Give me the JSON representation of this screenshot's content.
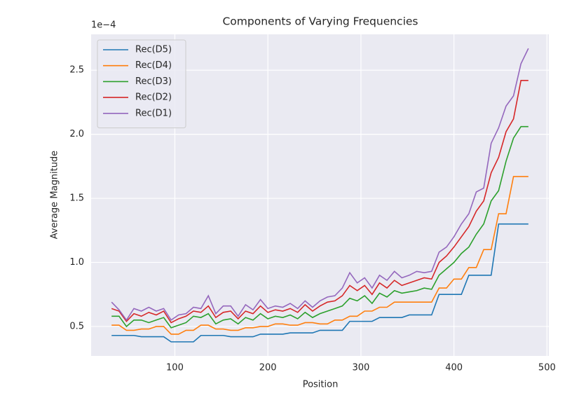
{
  "chart_data": {
    "type": "line",
    "title": "Components of Varying Frequencies",
    "xlabel": "Position",
    "ylabel": "Average Magnitude",
    "offset_text": "1e−4",
    "x": [
      32,
      40,
      48,
      56,
      64,
      72,
      80,
      88,
      96,
      104,
      112,
      120,
      128,
      136,
      144,
      152,
      160,
      168,
      176,
      184,
      192,
      200,
      208,
      216,
      224,
      232,
      240,
      248,
      256,
      264,
      272,
      280,
      288,
      296,
      304,
      312,
      320,
      328,
      336,
      344,
      352,
      360,
      368,
      376,
      384,
      392,
      400,
      408,
      416,
      424,
      432,
      440,
      448,
      456,
      464,
      472,
      480
    ],
    "series": [
      {
        "name": "Rec(D5)",
        "color": "#1f77b4",
        "values": [
          0.43,
          0.43,
          0.43,
          0.43,
          0.42,
          0.42,
          0.42,
          0.42,
          0.38,
          0.38,
          0.38,
          0.38,
          0.43,
          0.43,
          0.43,
          0.43,
          0.42,
          0.42,
          0.42,
          0.42,
          0.44,
          0.44,
          0.44,
          0.44,
          0.45,
          0.45,
          0.45,
          0.45,
          0.47,
          0.47,
          0.47,
          0.47,
          0.54,
          0.54,
          0.54,
          0.54,
          0.57,
          0.57,
          0.57,
          0.57,
          0.59,
          0.59,
          0.59,
          0.59,
          0.75,
          0.75,
          0.75,
          0.75,
          0.9,
          0.9,
          0.9,
          0.9,
          1.3,
          1.3,
          1.3,
          1.3,
          1.3
        ]
      },
      {
        "name": "Rec(D4)",
        "color": "#ff7f0e",
        "values": [
          0.51,
          0.51,
          0.47,
          0.47,
          0.48,
          0.48,
          0.5,
          0.5,
          0.44,
          0.44,
          0.47,
          0.47,
          0.51,
          0.51,
          0.48,
          0.48,
          0.47,
          0.47,
          0.49,
          0.49,
          0.5,
          0.5,
          0.52,
          0.52,
          0.51,
          0.51,
          0.53,
          0.53,
          0.52,
          0.52,
          0.55,
          0.55,
          0.58,
          0.58,
          0.62,
          0.62,
          0.65,
          0.65,
          0.69,
          0.69,
          0.69,
          0.69,
          0.69,
          0.69,
          0.8,
          0.8,
          0.87,
          0.87,
          0.96,
          0.96,
          1.1,
          1.1,
          1.38,
          1.38,
          1.67,
          1.67,
          1.67
        ]
      },
      {
        "name": "Rec(D3)",
        "color": "#2ca02c",
        "values": [
          0.58,
          0.58,
          0.5,
          0.55,
          0.55,
          0.53,
          0.55,
          0.57,
          0.49,
          0.51,
          0.53,
          0.58,
          0.57,
          0.6,
          0.52,
          0.55,
          0.56,
          0.52,
          0.57,
          0.55,
          0.6,
          0.56,
          0.58,
          0.57,
          0.59,
          0.56,
          0.61,
          0.57,
          0.6,
          0.62,
          0.64,
          0.66,
          0.72,
          0.7,
          0.74,
          0.68,
          0.76,
          0.73,
          0.78,
          0.76,
          0.77,
          0.78,
          0.8,
          0.79,
          0.9,
          0.95,
          1.0,
          1.07,
          1.12,
          1.22,
          1.3,
          1.48,
          1.56,
          1.79,
          1.97,
          2.06,
          2.06
        ]
      },
      {
        "name": "Rec(D2)",
        "color": "#d62728",
        "values": [
          0.64,
          0.62,
          0.54,
          0.6,
          0.58,
          0.61,
          0.59,
          0.62,
          0.53,
          0.56,
          0.58,
          0.62,
          0.61,
          0.66,
          0.57,
          0.61,
          0.62,
          0.56,
          0.62,
          0.6,
          0.66,
          0.61,
          0.63,
          0.62,
          0.64,
          0.61,
          0.67,
          0.62,
          0.66,
          0.69,
          0.7,
          0.74,
          0.82,
          0.78,
          0.82,
          0.75,
          0.84,
          0.8,
          0.86,
          0.82,
          0.84,
          0.86,
          0.88,
          0.87,
          1.0,
          1.05,
          1.12,
          1.2,
          1.28,
          1.4,
          1.48,
          1.7,
          1.82,
          2.02,
          2.12,
          2.42,
          2.42
        ]
      },
      {
        "name": "Rec(D1)",
        "color": "#9467bd",
        "values": [
          0.69,
          0.63,
          0.55,
          0.64,
          0.62,
          0.65,
          0.62,
          0.64,
          0.55,
          0.59,
          0.6,
          0.65,
          0.64,
          0.74,
          0.6,
          0.66,
          0.66,
          0.58,
          0.67,
          0.63,
          0.71,
          0.64,
          0.66,
          0.65,
          0.68,
          0.64,
          0.7,
          0.65,
          0.7,
          0.73,
          0.74,
          0.8,
          0.92,
          0.84,
          0.88,
          0.8,
          0.9,
          0.86,
          0.93,
          0.88,
          0.9,
          0.93,
          0.92,
          0.93,
          1.08,
          1.12,
          1.2,
          1.3,
          1.38,
          1.55,
          1.58,
          1.93,
          2.05,
          2.22,
          2.3,
          2.55,
          2.67
        ]
      }
    ],
    "xlim": [
      10,
      502
    ],
    "xticks": [
      100,
      200,
      300,
      400,
      500
    ],
    "ylim": [
      0.27,
      2.78
    ],
    "yticks": [
      0.5,
      {
        "value": 1,
        "label": "1.0"
      },
      1.5,
      {
        "value": 2,
        "label": "2.0"
      },
      2.5
    ],
    "grid": true,
    "legend": "upper-left"
  }
}
